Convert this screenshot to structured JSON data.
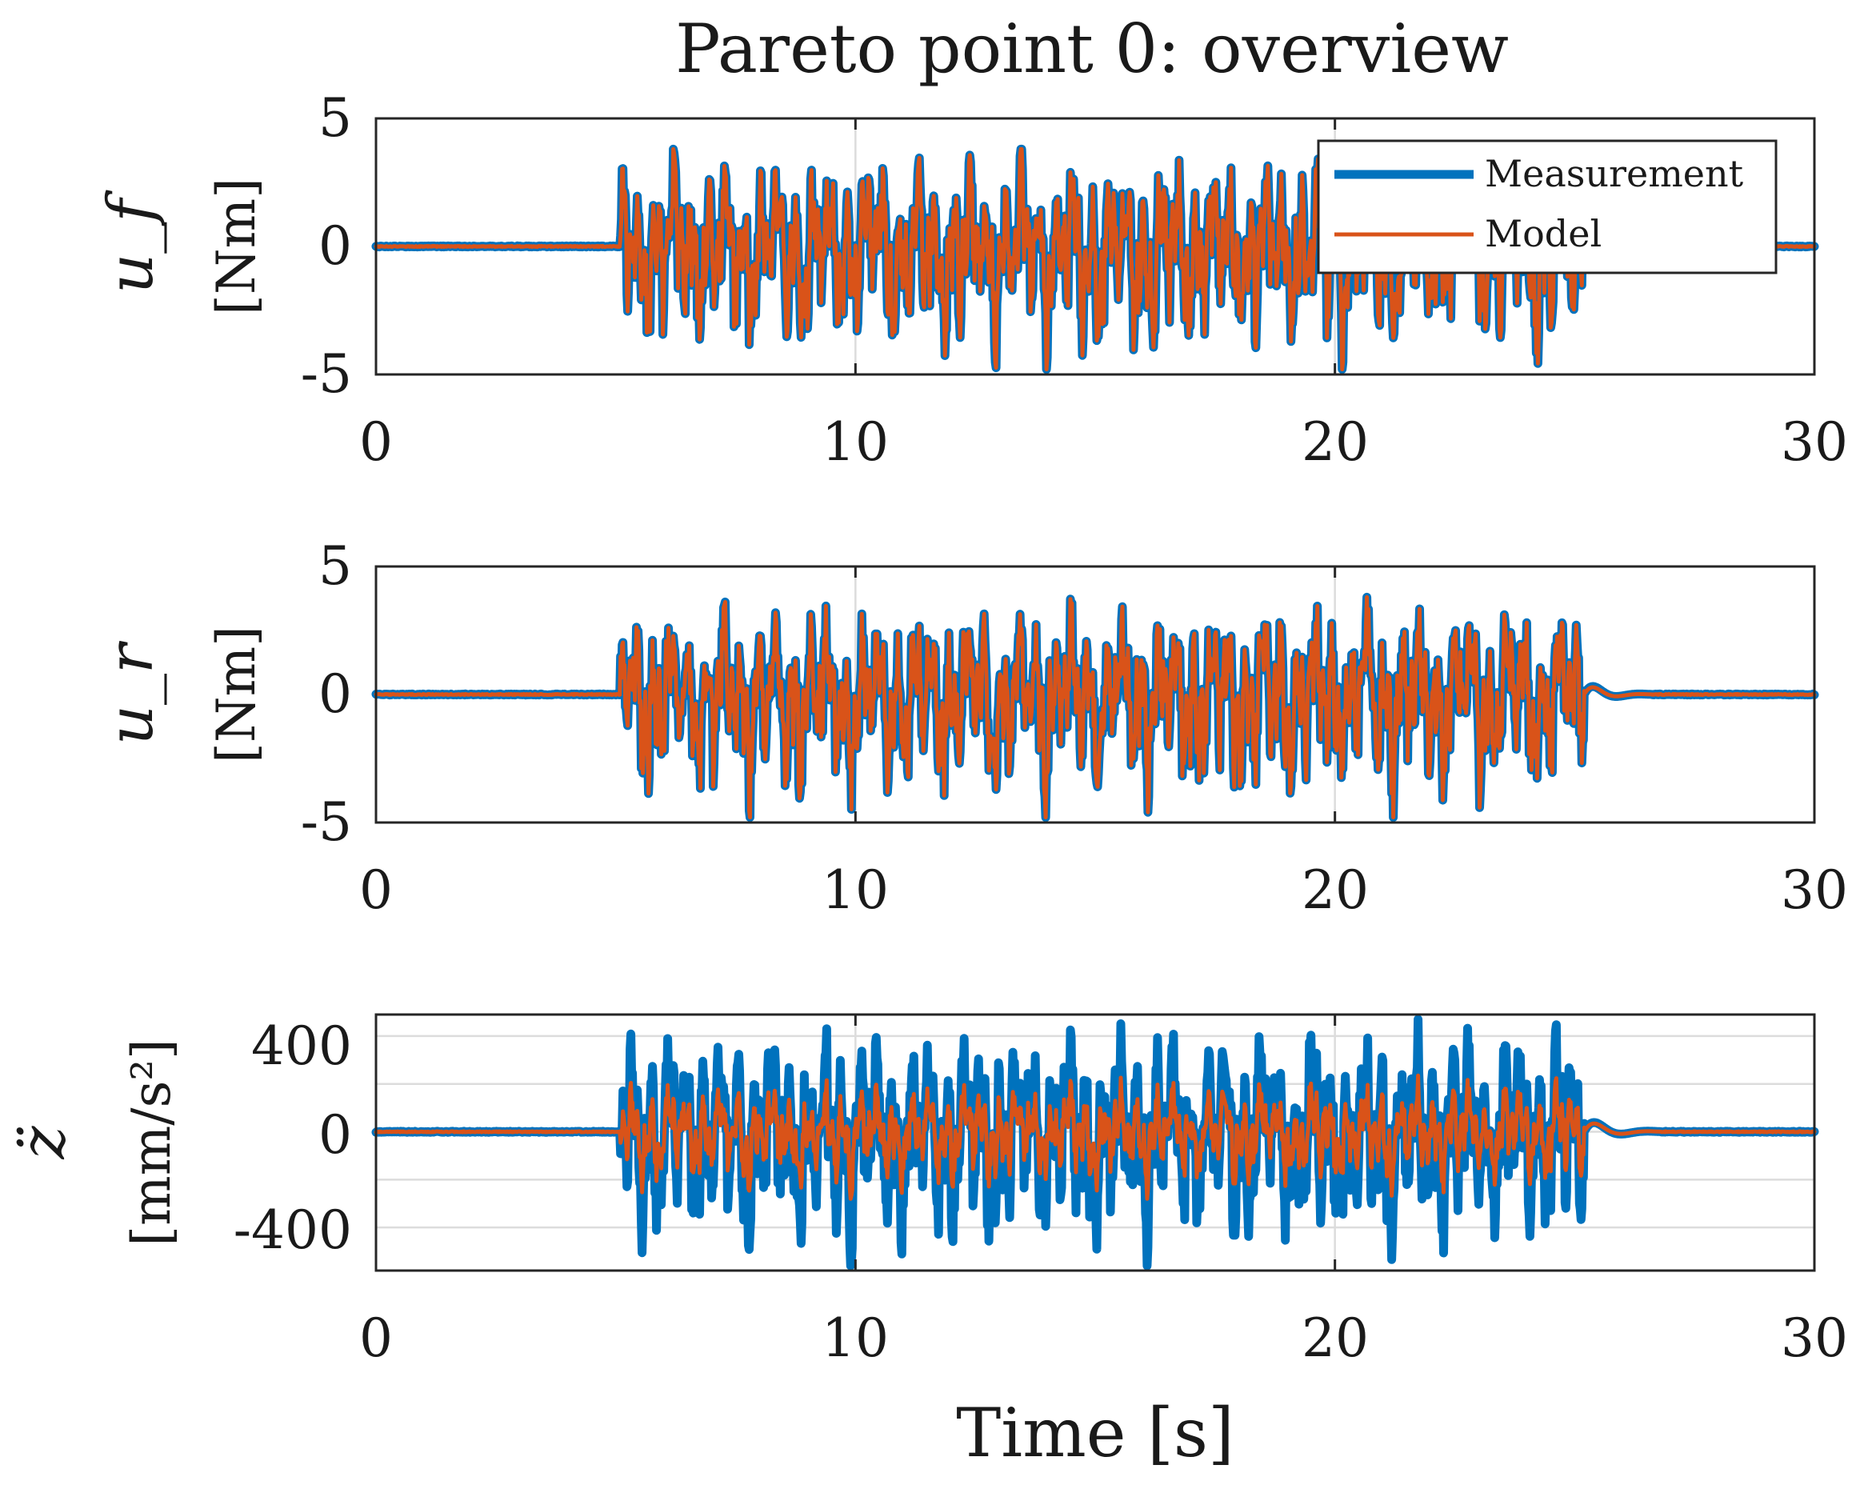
{
  "title": "Pareto point 0: overview",
  "colors": {
    "measurement": "#0072BD",
    "model": "#D95319",
    "text": "#1a1a1a",
    "grid": "#dcdcdc"
  },
  "chart_data": [
    {
      "type": "line",
      "id": "uf",
      "ylabel_symbol": "u_f",
      "ylabel_unit": "[Nm]",
      "xlim": [
        0,
        30
      ],
      "ylim": [
        -5,
        5
      ],
      "xticks": [
        "0",
        "10",
        "20",
        "30"
      ],
      "yticks": [
        "5",
        "0",
        "-5"
      ],
      "grid": "vertical",
      "legend": {
        "location": "top-right",
        "entries": [
          "Measurement",
          "Model"
        ]
      },
      "signal": {
        "start": 5.1,
        "end": 25.2,
        "settle_end": 25.2,
        "peak": 3.8,
        "trough": -4.8,
        "model_scale": 1.0,
        "seed": 1
      },
      "series": [
        {
          "name": "Measurement"
        },
        {
          "name": "Model"
        }
      ]
    },
    {
      "type": "line",
      "id": "ur",
      "ylabel_symbol": "u_r",
      "ylabel_unit": "[Nm]",
      "xlim": [
        0,
        30
      ],
      "ylim": [
        -5,
        5
      ],
      "xticks": [
        "0",
        "10",
        "20",
        "30"
      ],
      "yticks": [
        "5",
        "0",
        "-5"
      ],
      "grid": "vertical",
      "signal": {
        "start": 5.1,
        "end": 25.2,
        "settle_end": 26.6,
        "peak": 3.8,
        "trough": -4.8,
        "model_scale": 1.0,
        "seed": 2
      },
      "series": [
        {
          "name": "Measurement"
        },
        {
          "name": "Model"
        }
      ]
    },
    {
      "type": "line",
      "id": "zdd",
      "ylabel_symbol": "z̈",
      "ylabel_unit": "[mm/s²]",
      "xlim": [
        0,
        30
      ],
      "ylim": [
        -580,
        490
      ],
      "xticks": [
        "0",
        "10",
        "20",
        "30"
      ],
      "yticks": [
        "400",
        "0",
        "-400"
      ],
      "ytick_values": [
        400,
        0,
        -400
      ],
      "hgrid": [
        400,
        200,
        0,
        -200,
        -400
      ],
      "grid": "both",
      "signal": {
        "start": 5.1,
        "end": 25.2,
        "settle_end": 26.8,
        "peak": 470,
        "trough": -560,
        "model_scale": 0.5,
        "seed": 3
      },
      "series": [
        {
          "name": "Measurement"
        },
        {
          "name": "Model"
        }
      ]
    }
  ],
  "xlabel": "Time [s]"
}
